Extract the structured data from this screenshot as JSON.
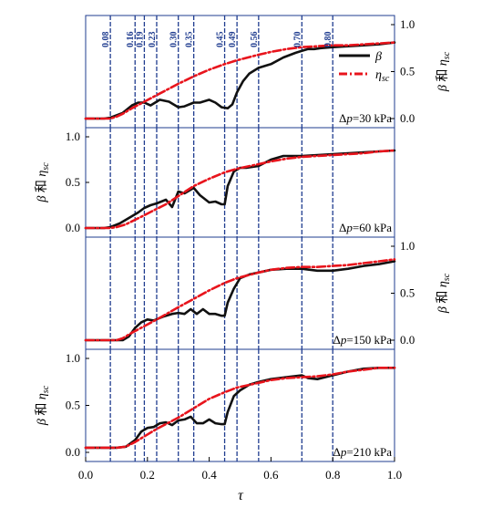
{
  "chart_data": {
    "type": "line",
    "x_ticks": [
      "0.0",
      "0.2",
      "0.4",
      "0.6",
      "0.8",
      "1.0"
    ],
    "xlabel": "τ",
    "xlim": [
      0,
      1
    ],
    "ylim": [
      0,
      1
    ],
    "vlines": [
      {
        "x": 0.08,
        "label": "0.08"
      },
      {
        "x": 0.16,
        "label": "0.16"
      },
      {
        "x": 0.19,
        "label": "0.19"
      },
      {
        "x": 0.23,
        "label": "0.23"
      },
      {
        "x": 0.3,
        "label": "0.30"
      },
      {
        "x": 0.35,
        "label": "0.35"
      },
      {
        "x": 0.45,
        "label": "0.45"
      },
      {
        "x": 0.49,
        "label": "0.49"
      },
      {
        "x": 0.56,
        "label": "0.56"
      },
      {
        "x": 0.7,
        "label": "0.70"
      },
      {
        "x": 0.8,
        "label": "0.80"
      }
    ],
    "legend": [
      {
        "symbol": "β",
        "color": "#000000",
        "style": "solid"
      },
      {
        "symbol": "η",
        "sub": "sc",
        "color": "#e8141c",
        "style": "dash-dot"
      }
    ],
    "panels": [
      {
        "label_pre": "Δ",
        "label_var": "p",
        "label_post": "=30 kPa",
        "y_side": "right",
        "y_ticks": [
          "0.0",
          "0.5",
          "1.0"
        ],
        "ylabel": {
          "beta": "β",
          "he": " 和 ",
          "eta": "η",
          "sub": "sc"
        },
        "series": [
          {
            "name": "β",
            "x": [
              0,
              0.06,
              0.08,
              0.12,
              0.15,
              0.17,
              0.19,
              0.21,
              0.24,
              0.27,
              0.3,
              0.32,
              0.35,
              0.37,
              0.4,
              0.42,
              0.44,
              0.46,
              0.475,
              0.49,
              0.51,
              0.53,
              0.56,
              0.6,
              0.64,
              0.68,
              0.7,
              0.72,
              0.74,
              0.76,
              0.8,
              0.85,
              0.9,
              0.95,
              1.0
            ],
            "y": [
              0.0,
              0.0,
              0.01,
              0.06,
              0.14,
              0.17,
              0.17,
              0.14,
              0.2,
              0.18,
              0.12,
              0.13,
              0.17,
              0.17,
              0.2,
              0.17,
              0.12,
              0.11,
              0.15,
              0.28,
              0.4,
              0.48,
              0.54,
              0.58,
              0.65,
              0.7,
              0.72,
              0.74,
              0.74,
              0.75,
              0.76,
              0.77,
              0.78,
              0.79,
              0.81
            ]
          },
          {
            "name": "ηsc",
            "x": [
              0,
              0.06,
              0.08,
              0.1,
              0.12,
              0.15,
              0.19,
              0.23,
              0.3,
              0.35,
              0.4,
              0.45,
              0.49,
              0.56,
              0.6,
              0.65,
              0.7,
              0.75,
              0.8,
              0.85,
              0.9,
              0.95,
              1.0
            ],
            "y": [
              0.0,
              0.0,
              0.0,
              0.02,
              0.05,
              0.11,
              0.18,
              0.25,
              0.37,
              0.45,
              0.52,
              0.58,
              0.62,
              0.68,
              0.71,
              0.74,
              0.76,
              0.77,
              0.78,
              0.78,
              0.79,
              0.8,
              0.81
            ]
          }
        ]
      },
      {
        "label_pre": "Δ",
        "label_var": "p",
        "label_post": "=60 kPa",
        "y_side": "left",
        "y_ticks": [
          "0.0",
          "0.5",
          "1.0"
        ],
        "ylabel": {
          "beta": "β",
          "he": " 和 ",
          "eta": "η",
          "sub": "sc"
        },
        "series": [
          {
            "name": "β",
            "x": [
              0,
              0.06,
              0.08,
              0.11,
              0.14,
              0.17,
              0.19,
              0.21,
              0.23,
              0.26,
              0.28,
              0.3,
              0.32,
              0.35,
              0.37,
              0.4,
              0.42,
              0.44,
              0.45,
              0.46,
              0.48,
              0.5,
              0.52,
              0.56,
              0.6,
              0.64,
              0.7,
              0.75,
              0.8,
              0.85,
              0.9,
              0.95,
              1.0
            ],
            "y": [
              0.0,
              0.0,
              0.01,
              0.05,
              0.11,
              0.17,
              0.22,
              0.25,
              0.27,
              0.31,
              0.23,
              0.4,
              0.38,
              0.44,
              0.36,
              0.28,
              0.29,
              0.26,
              0.26,
              0.46,
              0.62,
              0.66,
              0.66,
              0.68,
              0.75,
              0.79,
              0.79,
              0.8,
              0.81,
              0.82,
              0.83,
              0.84,
              0.85
            ]
          },
          {
            "name": "ηsc",
            "x": [
              0,
              0.06,
              0.08,
              0.1,
              0.13,
              0.16,
              0.19,
              0.23,
              0.26,
              0.3,
              0.35,
              0.4,
              0.45,
              0.49,
              0.56,
              0.6,
              0.65,
              0.7,
              0.75,
              0.8,
              0.85,
              0.9,
              0.95,
              1.0
            ],
            "y": [
              0.0,
              0.0,
              0.0,
              0.01,
              0.04,
              0.09,
              0.14,
              0.21,
              0.26,
              0.35,
              0.46,
              0.54,
              0.61,
              0.65,
              0.7,
              0.73,
              0.76,
              0.78,
              0.79,
              0.8,
              0.81,
              0.82,
              0.84,
              0.85
            ]
          }
        ]
      },
      {
        "label_pre": "Δ",
        "label_var": "p",
        "label_post": "=150 kPa",
        "y_side": "right",
        "y_ticks": [
          "0.0",
          "0.5",
          "1.0"
        ],
        "ylabel": {
          "beta": "β",
          "he": " 和 ",
          "eta": "η",
          "sub": "sc"
        },
        "series": [
          {
            "name": "β",
            "x": [
              0,
              0.08,
              0.12,
              0.14,
              0.16,
              0.18,
              0.2,
              0.22,
              0.25,
              0.28,
              0.3,
              0.32,
              0.34,
              0.36,
              0.38,
              0.4,
              0.42,
              0.44,
              0.45,
              0.46,
              0.48,
              0.5,
              0.53,
              0.56,
              0.6,
              0.65,
              0.7,
              0.75,
              0.8,
              0.85,
              0.9,
              0.95,
              1.0
            ],
            "y": [
              0.0,
              0.0,
              0.0,
              0.04,
              0.13,
              0.19,
              0.22,
              0.21,
              0.25,
              0.28,
              0.29,
              0.28,
              0.33,
              0.28,
              0.33,
              0.28,
              0.28,
              0.26,
              0.26,
              0.4,
              0.55,
              0.66,
              0.7,
              0.72,
              0.75,
              0.76,
              0.76,
              0.74,
              0.74,
              0.76,
              0.79,
              0.81,
              0.84
            ]
          },
          {
            "name": "ηsc",
            "x": [
              0,
              0.1,
              0.12,
              0.15,
              0.19,
              0.23,
              0.3,
              0.35,
              0.4,
              0.45,
              0.49,
              0.56,
              0.6,
              0.65,
              0.7,
              0.75,
              0.8,
              0.85,
              0.9,
              0.95,
              1.0
            ],
            "y": [
              0.0,
              0.0,
              0.02,
              0.08,
              0.15,
              0.22,
              0.35,
              0.44,
              0.53,
              0.61,
              0.66,
              0.72,
              0.75,
              0.77,
              0.78,
              0.78,
              0.79,
              0.8,
              0.82,
              0.84,
              0.86
            ]
          }
        ]
      },
      {
        "label_pre": "Δ",
        "label_var": "p",
        "label_post": "=210 kPa",
        "y_side": "left",
        "y_ticks": [
          "0.0",
          "0.5",
          "1.0"
        ],
        "ylabel": {
          "beta": "β",
          "he": " 和 ",
          "eta": "η",
          "sub": "sc"
        },
        "series": [
          {
            "name": "β",
            "x": [
              0,
              0.1,
              0.13,
              0.16,
              0.18,
              0.2,
              0.22,
              0.24,
              0.26,
              0.28,
              0.3,
              0.32,
              0.34,
              0.36,
              0.38,
              0.4,
              0.42,
              0.44,
              0.45,
              0.46,
              0.48,
              0.5,
              0.53,
              0.56,
              0.6,
              0.65,
              0.7,
              0.72,
              0.75,
              0.8,
              0.85,
              0.9,
              0.95,
              1.0
            ],
            "y": [
              0.05,
              0.05,
              0.06,
              0.13,
              0.22,
              0.26,
              0.27,
              0.31,
              0.32,
              0.29,
              0.34,
              0.35,
              0.38,
              0.31,
              0.31,
              0.35,
              0.31,
              0.3,
              0.3,
              0.43,
              0.6,
              0.66,
              0.72,
              0.75,
              0.78,
              0.8,
              0.82,
              0.79,
              0.78,
              0.82,
              0.86,
              0.89,
              0.9,
              0.9
            ]
          },
          {
            "name": "ηsc",
            "x": [
              0,
              0.1,
              0.13,
              0.16,
              0.19,
              0.23,
              0.3,
              0.35,
              0.4,
              0.45,
              0.49,
              0.56,
              0.6,
              0.65,
              0.7,
              0.75,
              0.8,
              0.85,
              0.9,
              0.95,
              1.0
            ],
            "y": [
              0.05,
              0.05,
              0.06,
              0.11,
              0.17,
              0.25,
              0.37,
              0.47,
              0.57,
              0.64,
              0.69,
              0.74,
              0.77,
              0.79,
              0.8,
              0.81,
              0.83,
              0.86,
              0.88,
              0.9,
              0.9
            ]
          }
        ]
      }
    ]
  }
}
